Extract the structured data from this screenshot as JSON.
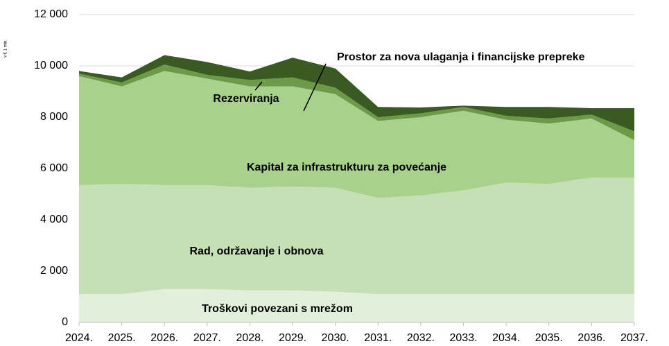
{
  "chart_data": {
    "type": "stacked_area",
    "y_axis_label": "x € 1 mln.",
    "categories": [
      "2024.",
      "2025.",
      "2026.",
      "2027.",
      "2028.",
      "2029.",
      "2030.",
      "2031.",
      "2032.",
      "2033.",
      "2034.",
      "2035.",
      "2036.",
      "2037."
    ],
    "series": [
      {
        "name": "Troškovi povezani s mrežom",
        "color": "#e2efda",
        "values": [
          1100,
          1100,
          1300,
          1300,
          1250,
          1250,
          1200,
          1100,
          1100,
          1100,
          1100,
          1100,
          1100,
          1100
        ]
      },
      {
        "name": "Rad, održavanje i obnova",
        "color": "#c5e0b4",
        "values": [
          4250,
          4300,
          4050,
          4050,
          4000,
          4050,
          4050,
          3750,
          3850,
          4050,
          4350,
          4300,
          4550,
          4550
        ]
      },
      {
        "name": "Kapital za infrastrukturu za povećanje",
        "color": "#a9d18e",
        "values": [
          4250,
          3800,
          4450,
          4150,
          3950,
          3900,
          3650,
          3000,
          3050,
          3100,
          2450,
          2350,
          2300,
          1450
        ]
      },
      {
        "name": "Rezerviranja",
        "color": "#6c9a47",
        "values": [
          100,
          150,
          250,
          150,
          250,
          350,
          250,
          150,
          150,
          150,
          150,
          200,
          150,
          350
        ]
      },
      {
        "name": "Prostor za nova ulaganja i financijske prepreke",
        "color": "#3a5a24",
        "values": [
          100,
          200,
          370,
          500,
          330,
          770,
          750,
          400,
          230,
          50,
          350,
          450,
          250,
          900
        ]
      }
    ],
    "ylim": [
      0,
      12000
    ],
    "yticks": [
      0,
      {
        "value": 2000,
        "label": "2 000"
      },
      {
        "value": 4000,
        "label": "4 000"
      },
      {
        "value": 6000,
        "label": "6 000"
      },
      {
        "value": 8000,
        "label": "8 000"
      },
      {
        "value": 10000,
        "label": "10 000"
      },
      {
        "value": 12000,
        "label": "12 000"
      }
    ],
    "grid": true
  }
}
